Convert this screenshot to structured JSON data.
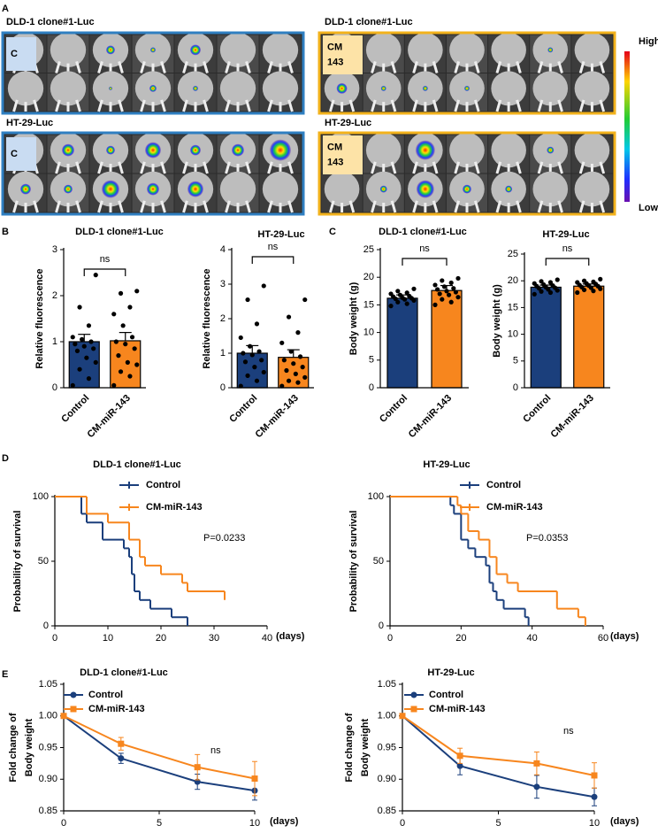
{
  "panel_labels": [
    "A",
    "B",
    "C",
    "D",
    "E"
  ],
  "imaging": {
    "groups": [
      {
        "title": "DLD-1 clone#1-Luc",
        "label": [
          "C"
        ]
      },
      {
        "title": "HT-29-Luc",
        "label": [
          "C"
        ]
      },
      {
        "title": "DLD-1 clone#1-Luc",
        "label": [
          "CM",
          "143"
        ]
      },
      {
        "title": "HT-29-Luc",
        "label": [
          "CM",
          "143"
        ]
      }
    ],
    "scale_high": "High",
    "scale_low": "Low"
  },
  "chart_data": [
    {
      "type": "bar",
      "title": "DLD-1 clone#1-Luc",
      "ylabel": "Relative fluorescence",
      "categories": [
        "Control",
        "CM-miR-143"
      ],
      "values": [
        1.0,
        1.02
      ],
      "errors": [
        0.16,
        0.18
      ],
      "points": [
        [
          0.05,
          0.2,
          0.4,
          0.55,
          0.65,
          0.8,
          0.85,
          0.9,
          0.95,
          1.0,
          1.05,
          1.1,
          1.35,
          1.75,
          2.45
        ],
        [
          0.05,
          0.25,
          0.35,
          0.5,
          0.55,
          0.7,
          0.85,
          0.95,
          1.0,
          1.1,
          1.35,
          1.6,
          1.75,
          2.05,
          2.1
        ]
      ],
      "colors": [
        "#1b3f7c",
        "#f7861e"
      ],
      "ylim": [
        0,
        3
      ],
      "yticks": [
        0,
        1,
        2,
        3
      ],
      "annotation": "ns"
    },
    {
      "type": "bar",
      "title": "HT-29-Luc",
      "ylabel": "Relative fluorescence",
      "categories": [
        "Control",
        "CM-miR-143"
      ],
      "values": [
        1.0,
        0.88
      ],
      "errors": [
        0.22,
        0.22
      ],
      "points": [
        [
          0.05,
          0.2,
          0.35,
          0.45,
          0.6,
          0.75,
          0.8,
          0.95,
          1.0,
          1.05,
          1.2,
          1.45,
          1.85,
          2.55,
          2.95
        ],
        [
          0.05,
          0.15,
          0.2,
          0.3,
          0.4,
          0.5,
          0.6,
          0.7,
          0.8,
          0.9,
          1.05,
          1.3,
          1.6,
          2.05,
          2.55
        ]
      ],
      "colors": [
        "#1b3f7c",
        "#f7861e"
      ],
      "ylim": [
        0,
        4
      ],
      "yticks": [
        0,
        1,
        2,
        3,
        4
      ],
      "annotation": "ns"
    },
    {
      "type": "bar",
      "title": "DLD-1 clone#1-Luc",
      "ylabel": "Body weight (g)",
      "categories": [
        "Control",
        "CM-miR-143"
      ],
      "values": [
        16.2,
        17.6
      ],
      "errors": [
        0.6,
        0.9
      ],
      "points": [
        [
          14.8,
          15.2,
          15.5,
          15.8,
          16.0,
          16.1,
          16.2,
          16.3,
          16.5,
          16.6,
          16.8,
          17.0,
          17.2,
          17.5,
          17.9
        ],
        [
          15.0,
          15.5,
          16.0,
          16.4,
          16.8,
          17.0,
          17.3,
          17.5,
          17.8,
          18.0,
          18.3,
          18.6,
          19.0,
          19.4,
          19.8
        ]
      ],
      "colors": [
        "#1b3f7c",
        "#f7861e"
      ],
      "ylim": [
        0,
        25
      ],
      "yticks": [
        0,
        5,
        10,
        15,
        20,
        25
      ],
      "annotation": "ns"
    },
    {
      "type": "bar",
      "title": "HT-29-Luc",
      "ylabel": "Body weight (g)",
      "categories": [
        "Control",
        "CM-miR-143"
      ],
      "values": [
        18.8,
        19.0
      ],
      "errors": [
        0.4,
        0.4
      ],
      "points": [
        [
          17.5,
          17.8,
          18.0,
          18.2,
          18.4,
          18.6,
          18.7,
          18.8,
          19.0,
          19.1,
          19.3,
          19.5,
          19.7,
          19.9,
          20.2
        ],
        [
          17.8,
          18.1,
          18.3,
          18.5,
          18.7,
          18.8,
          19.0,
          19.1,
          19.2,
          19.4,
          19.5,
          19.7,
          19.8,
          20.0,
          20.3
        ]
      ],
      "colors": [
        "#1b3f7c",
        "#f7861e"
      ],
      "ylim": [
        0,
        25
      ],
      "yticks": [
        0,
        5,
        10,
        15,
        20,
        25
      ],
      "annotation": "ns"
    },
    {
      "type": "step",
      "title": "DLD-1 clone#1-Luc",
      "ylabel": "Probability of survival",
      "xlabel": "(days)",
      "series": [
        {
          "name": "Control",
          "color": "#1b3f7c",
          "x": [
            0,
            5,
            6,
            9,
            13,
            14,
            14.5,
            15,
            16,
            18,
            22,
            25
          ],
          "y": [
            100,
            86.7,
            80,
            66.7,
            60,
            53.3,
            40,
            26.7,
            20,
            13.3,
            6.7,
            0
          ]
        },
        {
          "name": "CM-miR-143",
          "color": "#f7861e",
          "x": [
            0,
            6,
            10,
            14,
            16,
            17,
            20,
            24,
            25,
            32
          ],
          "y": [
            100,
            86.7,
            80,
            66.7,
            53.3,
            46.7,
            40,
            33.3,
            26.7,
            20
          ]
        }
      ],
      "xlim": [
        0,
        40
      ],
      "xticks": [
        0,
        10,
        20,
        30,
        40
      ],
      "ylim": [
        0,
        100
      ],
      "yticks": [
        0,
        50,
        100
      ],
      "annotation": "P=0.0233"
    },
    {
      "type": "step",
      "title": "HT-29-Luc",
      "ylabel": "Probability of survival",
      "xlabel": "(days)",
      "series": [
        {
          "name": "Control",
          "color": "#1b3f7c",
          "x": [
            0,
            17,
            18,
            20,
            22,
            24,
            27,
            28,
            29,
            30,
            32,
            38,
            39
          ],
          "y": [
            100,
            93.3,
            86.7,
            66.7,
            60,
            53.3,
            46.7,
            33.3,
            26.7,
            20,
            13.3,
            6.7,
            0
          ]
        },
        {
          "name": "CM-miR-143",
          "color": "#f7861e",
          "x": [
            0,
            19,
            20,
            22,
            25,
            28,
            30,
            33,
            36,
            47,
            53,
            55
          ],
          "y": [
            100,
            93.3,
            86.7,
            73.3,
            66.7,
            53.3,
            40,
            33.3,
            26.7,
            13.3,
            6.7,
            0
          ]
        }
      ],
      "xlim": [
        0,
        60
      ],
      "xticks": [
        0,
        20,
        40,
        60
      ],
      "ylim": [
        0,
        100
      ],
      "yticks": [
        0,
        50,
        100
      ],
      "annotation": "P=0.0353"
    },
    {
      "type": "line",
      "title": "DLD-1 clone#1-Luc",
      "ylabel": [
        "Fold change of",
        "Body weight"
      ],
      "xlabel": "(days)",
      "x": [
        0,
        3,
        7,
        10
      ],
      "series": [
        {
          "name": "Control",
          "color": "#1b3f7c",
          "values": [
            1.0,
            0.933,
            0.896,
            0.882
          ],
          "errors": [
            0,
            0.008,
            0.012,
            0.015
          ]
        },
        {
          "name": "CM-miR-143",
          "color": "#f7861e",
          "values": [
            1.0,
            0.956,
            0.919,
            0.901
          ],
          "errors": [
            0,
            0.01,
            0.02,
            0.027
          ]
        }
      ],
      "xlim": [
        0,
        10
      ],
      "xticks": [
        0,
        5,
        10
      ],
      "ylim": [
        0.85,
        1.05
      ],
      "yticks": [
        0.85,
        {
          "value": 0.9,
          "label": "0.90"
        },
        0.95,
        {
          "value": 1,
          "label": "1.00"
        },
        1.05
      ],
      "annotation": "ns"
    },
    {
      "type": "line",
      "title": "HT-29-Luc",
      "ylabel": [
        "Fold change of",
        "Body weight"
      ],
      "xlabel": "(days)",
      "x": [
        0,
        3,
        7,
        10
      ],
      "series": [
        {
          "name": "Control",
          "color": "#1b3f7c",
          "values": [
            1.0,
            0.921,
            0.888,
            0.872
          ],
          "errors": [
            0,
            0.014,
            0.018,
            0.014
          ]
        },
        {
          "name": "CM-miR-143",
          "color": "#f7861e",
          "values": [
            1.0,
            0.937,
            0.925,
            0.906
          ],
          "errors": [
            0,
            0.012,
            0.018,
            0.02
          ]
        }
      ],
      "xlim": [
        0,
        10
      ],
      "xticks": [
        0,
        5,
        10
      ],
      "ylim": [
        0.85,
        1.05
      ],
      "yticks": [
        0.85,
        {
          "value": 0.9,
          "label": "0.90"
        },
        0.95,
        {
          "value": 1,
          "label": "1.00"
        },
        1.05
      ],
      "annotation": "ns"
    }
  ]
}
